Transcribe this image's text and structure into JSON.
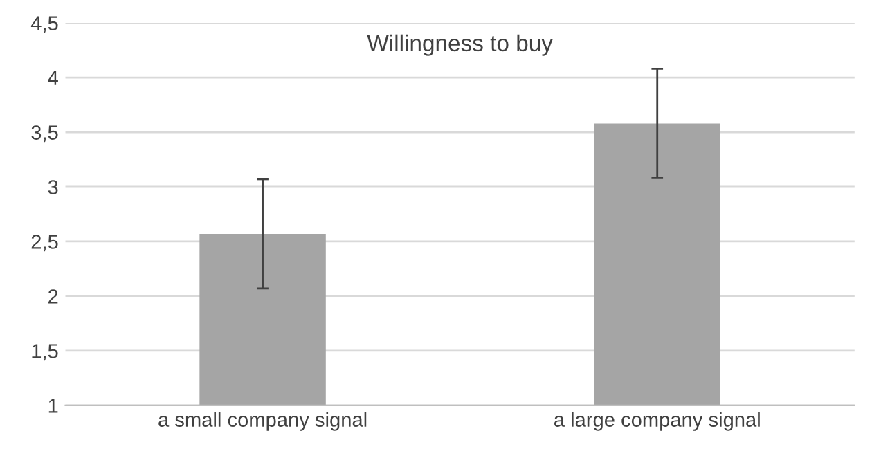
{
  "chart_data": {
    "type": "bar",
    "title": "Willingness to buy",
    "categories": [
      "a small company signal",
      "a large company signal"
    ],
    "values": [
      2.57,
      3.58
    ],
    "errors": [
      0.5,
      0.5
    ],
    "color": "#a5a5a5",
    "ylim": [
      1,
      4.5
    ],
    "yticks": [
      1,
      {
        "value": 1.5,
        "label": "1,5"
      },
      2,
      {
        "value": 2.5,
        "label": "2,5"
      },
      3,
      {
        "value": 3.5,
        "label": "3,5"
      },
      4,
      {
        "value": 4.5,
        "label": "4,5"
      }
    ],
    "grid": "y"
  }
}
